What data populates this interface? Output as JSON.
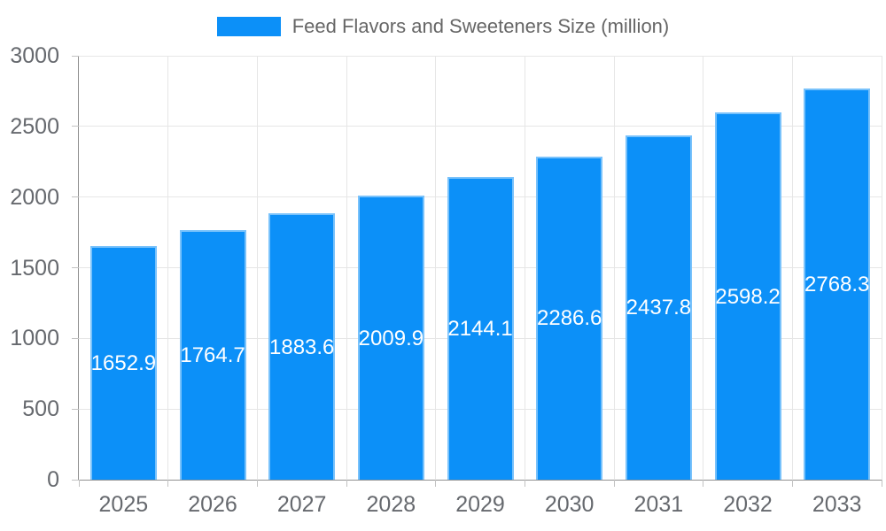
{
  "chart_data": {
    "type": "bar",
    "title": "Feed Flavors and Sweeteners Size (million)",
    "categories": [
      "2025",
      "2026",
      "2027",
      "2028",
      "2029",
      "2030",
      "2031",
      "2032",
      "2033"
    ],
    "series": [
      {
        "name": "Feed Flavors and Sweeteners Size (million)",
        "values": [
          1652.9,
          1764.7,
          1883.6,
          2009.9,
          2144.1,
          2286.6,
          2437.8,
          2598.2,
          2768.3
        ]
      }
    ],
    "value_labels": [
      "1652.9",
      "1764.7",
      "1883.6",
      "2009.9",
      "2144.1",
      "2286.6",
      "2437.8",
      "2598.2",
      "2768.3"
    ],
    "xlabel": "",
    "ylabel": "",
    "ylim": [
      0,
      3000
    ],
    "yticks": [
      0,
      500,
      1000,
      1500,
      2000,
      2500,
      3000
    ],
    "grid": true,
    "legend_position": "top",
    "colors": {
      "bar": "#0c90f8",
      "grid": "#e6e6e6",
      "axis_line": "#909090",
      "tick": "#c2c2c2",
      "axis_text": "#66696e",
      "value_label": "#ffffff",
      "legend_text": "#666666"
    }
  }
}
